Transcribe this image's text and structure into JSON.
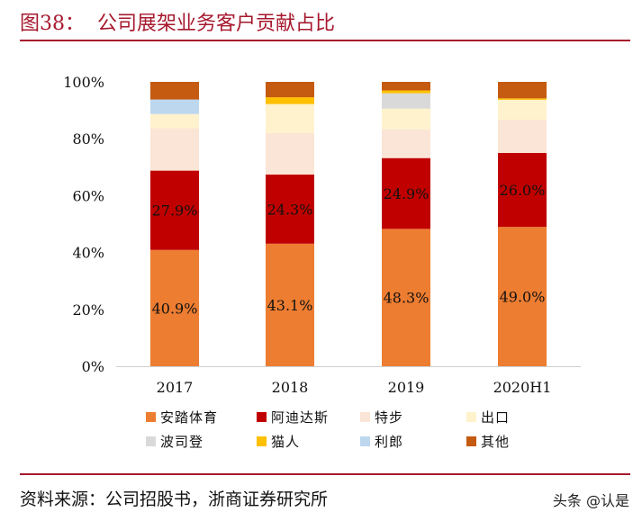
{
  "header": {
    "title": "图38：  公司展架业务客户贡献占比"
  },
  "footer": {
    "source": "资料来源：公司招股书，浙商证券研究所",
    "watermark": "头条 @认是"
  },
  "chart_data": {
    "type": "bar",
    "stacked": true,
    "title": "公司展架业务客户贡献占比",
    "categories": [
      "2017",
      "2018",
      "2019",
      "2020H1"
    ],
    "ylim": [
      0,
      100
    ],
    "yticks": [
      "0%",
      "20%",
      "40%",
      "60%",
      "80%",
      "100%"
    ],
    "legend_position": "bottom",
    "series": [
      {
        "name": "安踏体育",
        "color": "#ED7D31",
        "values": [
          40.9,
          43.1,
          48.3,
          49.0
        ],
        "labels": [
          "40.9%",
          "43.1%",
          "48.3%",
          "49.0%"
        ]
      },
      {
        "name": "阿迪达斯",
        "color": "#C00000",
        "values": [
          27.9,
          24.3,
          24.9,
          26.0
        ],
        "labels": [
          "27.9%",
          "24.3%",
          "24.9%",
          "26.0%"
        ]
      },
      {
        "name": "特步",
        "color": "#FBE5D6",
        "values": [
          14.9,
          14.6,
          10.1,
          11.7
        ]
      },
      {
        "name": "出口",
        "color": "#FFF2CC",
        "values": [
          5.0,
          10.2,
          7.3,
          7.0
        ]
      },
      {
        "name": "波司登",
        "color": "#D9D9D9",
        "values": [
          0,
          0,
          5.4,
          0
        ]
      },
      {
        "name": "猫人",
        "color": "#FFC000",
        "values": [
          0,
          2.4,
          1.0,
          0.5
        ]
      },
      {
        "name": "利郎",
        "color": "#BDD7EE",
        "values": [
          5.1,
          0,
          0,
          0
        ]
      },
      {
        "name": "其他",
        "color": "#C55A11",
        "values": [
          6.2,
          5.4,
          3.0,
          5.8
        ]
      }
    ]
  }
}
